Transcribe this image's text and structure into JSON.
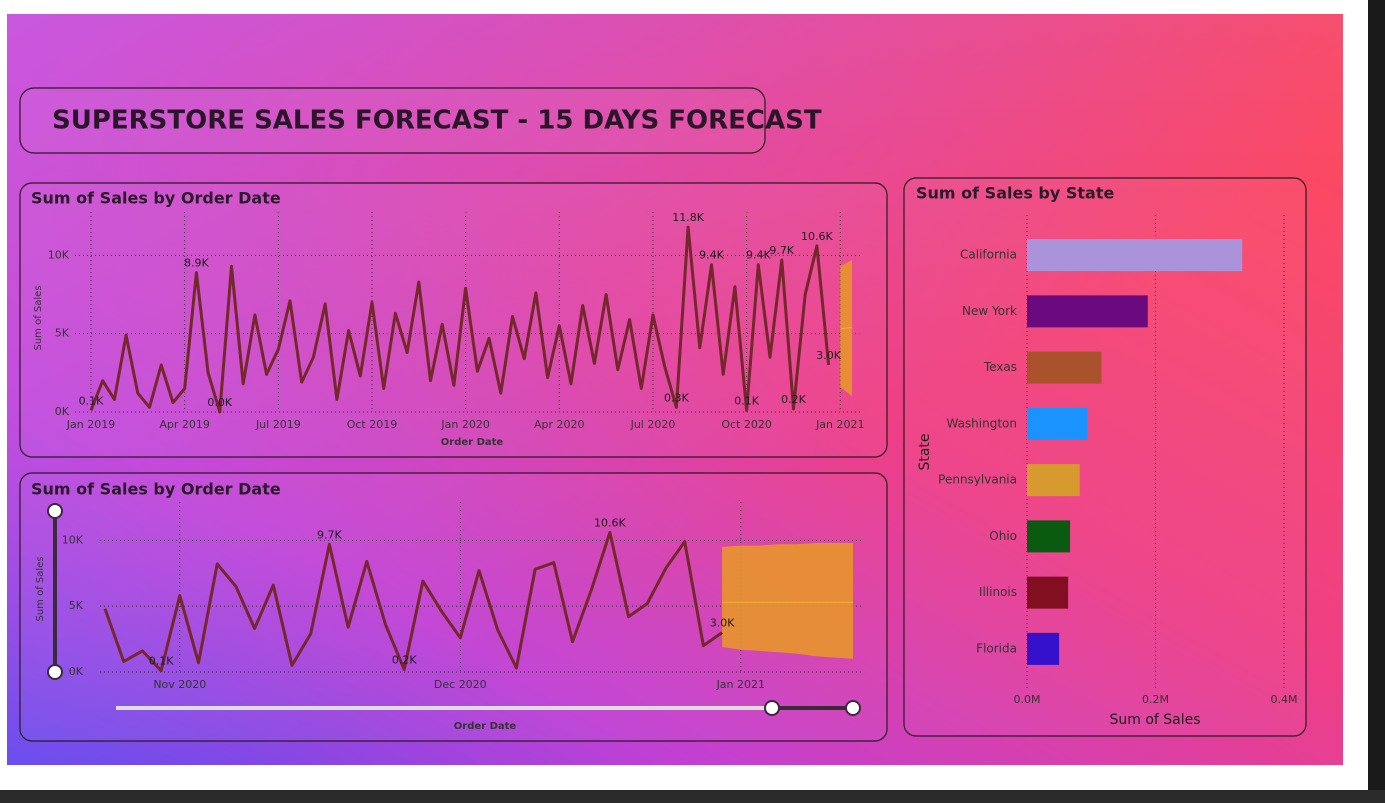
{
  "header": {
    "title": "SUPERSTORE SALES FORECAST - 15 DAYS FORECAST"
  },
  "chart_data": [
    {
      "type": "line",
      "title": "Sum of Sales by Order Date",
      "x_label": "Order Date",
      "y_label": "Sum of Sales",
      "categories": [
        "Jan 2019",
        null,
        null,
        null,
        null,
        null,
        null,
        null,
        "Apr 2019",
        null,
        null,
        null,
        null,
        null,
        null,
        null,
        "Jul 2019",
        null,
        null,
        null,
        null,
        null,
        null,
        null,
        "Oct 2019",
        null,
        null,
        null,
        null,
        null,
        null,
        null,
        "Jan 2020",
        null,
        null,
        null,
        null,
        null,
        null,
        null,
        "Apr 2020",
        null,
        null,
        null,
        null,
        null,
        null,
        null,
        "Jul 2020",
        null,
        null,
        null,
        null,
        null,
        null,
        null,
        "Oct 2020",
        null,
        null,
        null,
        null,
        null,
        null,
        null,
        "Jan 2021",
        null
      ],
      "ylim": [
        0,
        12000
      ],
      "yticks": [
        {
          "value": 0,
          "label": "0K"
        },
        {
          "value": 5000,
          "label": "5K"
        },
        {
          "value": 10000,
          "label": "10K"
        }
      ],
      "grid": true,
      "series": [
        {
          "color": "#74282c",
          "values": [
            100,
            2000,
            800,
            4900,
            1200,
            300,
            3000,
            600,
            1500,
            8900,
            2500,
            0,
            9300,
            1800,
            6200,
            2400,
            4000,
            7100,
            1900,
            3500,
            6900,
            800,
            5200,
            2300,
            7000,
            1500,
            6300,
            3800,
            8300,
            2000,
            5600,
            1700,
            7900,
            2600,
            4700,
            1200,
            6100,
            3400,
            7600,
            2200,
            5500,
            1800,
            6800,
            3100,
            7500,
            2700,
            5900,
            1500,
            6200,
            2900,
            300,
            11800,
            4100,
            9400,
            2400,
            8000,
            100,
            9400,
            3500,
            9700,
            200,
            7500,
            10600,
            3000,
            null,
            null
          ],
          "value_labels": [
            "0.1K",
            null,
            null,
            null,
            null,
            null,
            null,
            null,
            null,
            "8.9K",
            null,
            "0.0K",
            null,
            null,
            null,
            null,
            null,
            null,
            null,
            null,
            null,
            null,
            null,
            null,
            null,
            null,
            null,
            null,
            null,
            null,
            null,
            null,
            null,
            null,
            null,
            null,
            null,
            null,
            null,
            null,
            null,
            null,
            null,
            null,
            null,
            null,
            null,
            null,
            null,
            null,
            "0.3K",
            "11.8K",
            null,
            "9.4K",
            null,
            null,
            "0.1K",
            "9.4K",
            null,
            "9.7K",
            "0.2K",
            null,
            "10.6K",
            "3.0K",
            null,
            null
          ]
        }
      ],
      "forecast": {
        "color": "#e8952c",
        "upper": [
          null,
          null,
          null,
          null,
          null,
          null,
          null,
          null,
          null,
          null,
          null,
          null,
          null,
          null,
          null,
          null,
          null,
          null,
          null,
          null,
          null,
          null,
          null,
          null,
          null,
          null,
          null,
          null,
          null,
          null,
          null,
          null,
          null,
          null,
          null,
          null,
          null,
          null,
          null,
          null,
          null,
          null,
          null,
          null,
          null,
          null,
          null,
          null,
          null,
          null,
          null,
          null,
          null,
          null,
          null,
          null,
          null,
          null,
          null,
          null,
          null,
          null,
          null,
          null,
          9300,
          9700
        ],
        "lower": [
          null,
          null,
          null,
          null,
          null,
          null,
          null,
          null,
          null,
          null,
          null,
          null,
          null,
          null,
          null,
          null,
          null,
          null,
          null,
          null,
          null,
          null,
          null,
          null,
          null,
          null,
          null,
          null,
          null,
          null,
          null,
          null,
          null,
          null,
          null,
          null,
          null,
          null,
          null,
          null,
          null,
          null,
          null,
          null,
          null,
          null,
          null,
          null,
          null,
          null,
          null,
          null,
          null,
          null,
          null,
          null,
          null,
          null,
          null,
          null,
          null,
          null,
          null,
          null,
          1600,
          1000
        ],
        "values": [
          null,
          null,
          null,
          null,
          null,
          null,
          null,
          null,
          null,
          null,
          null,
          null,
          null,
          null,
          null,
          null,
          null,
          null,
          null,
          null,
          null,
          null,
          null,
          null,
          null,
          null,
          null,
          null,
          null,
          null,
          null,
          null,
          null,
          null,
          null,
          null,
          null,
          null,
          null,
          null,
          null,
          null,
          null,
          null,
          null,
          null,
          null,
          null,
          null,
          null,
          null,
          null,
          null,
          null,
          null,
          null,
          null,
          null,
          null,
          null,
          null,
          null,
          null,
          null,
          5300,
          5400
        ]
      }
    },
    {
      "type": "line",
      "title": "Sum of Sales by Order Date",
      "x_label": "Order Date",
      "y_label": "Sum of Sales",
      "categories": [
        null,
        null,
        null,
        null,
        "Nov 2020",
        null,
        null,
        null,
        null,
        null,
        null,
        null,
        null,
        null,
        null,
        null,
        null,
        null,
        null,
        "Dec 2020",
        null,
        null,
        null,
        null,
        null,
        null,
        null,
        null,
        null,
        null,
        null,
        null,
        null,
        null,
        "Jan 2021",
        null,
        null,
        null,
        null,
        null,
        null
      ],
      "ylim": [
        0,
        12000
      ],
      "yticks": [
        {
          "value": 0,
          "label": "0K"
        },
        {
          "value": 5000,
          "label": "5K"
        },
        {
          "value": 10000,
          "label": "10K"
        }
      ],
      "grid": true,
      "series": [
        {
          "color": "#74282c",
          "values": [
            4800,
            800,
            1600,
            100,
            5800,
            700,
            8200,
            6500,
            3300,
            6600,
            500,
            2900,
            9700,
            3400,
            8400,
            3600,
            200,
            6900,
            4600,
            2600,
            7700,
            3200,
            300,
            7800,
            8300,
            2300,
            6200,
            10600,
            4200,
            5200,
            7900,
            9900,
            2000,
            3000,
            null,
            null,
            null,
            null,
            null,
            null,
            null
          ],
          "value_labels": [
            null,
            null,
            null,
            "0.1K",
            null,
            null,
            null,
            null,
            null,
            null,
            null,
            null,
            "9.7K",
            null,
            null,
            null,
            "0.2K",
            null,
            null,
            null,
            null,
            null,
            null,
            null,
            null,
            null,
            null,
            "10.6K",
            null,
            null,
            null,
            null,
            null,
            "3.0K",
            null,
            null,
            null,
            null,
            null,
            null,
            null
          ]
        }
      ],
      "forecast": {
        "color": "#e8952c",
        "upper": [
          null,
          null,
          null,
          null,
          null,
          null,
          null,
          null,
          null,
          null,
          null,
          null,
          null,
          null,
          null,
          null,
          null,
          null,
          null,
          null,
          null,
          null,
          null,
          null,
          null,
          null,
          null,
          null,
          null,
          null,
          null,
          null,
          null,
          9500,
          9600,
          9600,
          9700,
          9700,
          9800,
          9800,
          9800
        ],
        "lower": [
          null,
          null,
          null,
          null,
          null,
          null,
          null,
          null,
          null,
          null,
          null,
          null,
          null,
          null,
          null,
          null,
          null,
          null,
          null,
          null,
          null,
          null,
          null,
          null,
          null,
          null,
          null,
          null,
          null,
          null,
          null,
          null,
          null,
          1900,
          1700,
          1600,
          1500,
          1400,
          1200,
          1100,
          1000
        ],
        "values": [
          null,
          null,
          null,
          null,
          null,
          null,
          null,
          null,
          null,
          null,
          null,
          null,
          null,
          null,
          null,
          null,
          null,
          null,
          null,
          null,
          null,
          null,
          null,
          null,
          null,
          null,
          null,
          null,
          null,
          null,
          null,
          null,
          null,
          5300,
          5300,
          5300,
          5300,
          5300,
          5300,
          5300,
          5300
        ]
      }
    },
    {
      "type": "bar",
      "orientation": "horizontal",
      "title": "Sum of Sales by State",
      "x_label": "Sum of Sales",
      "y_label": "State",
      "categories": [
        "California",
        "New York",
        "Texas",
        "Washington",
        "Pennsylvania",
        "Ohio",
        "Illinois",
        "Florida"
      ],
      "values": [
        335000,
        188000,
        116000,
        94000,
        82000,
        67000,
        64000,
        50000
      ],
      "colors": [
        "#ab93dc",
        "#6a0a7e",
        "#a9522c",
        "#1a93ff",
        "#d69a2e",
        "#0b5a12",
        "#820f1f",
        "#3611cc"
      ],
      "xlim": [
        0,
        400000
      ],
      "xticks": [
        {
          "value": 0,
          "label": "0.0M"
        },
        {
          "value": 200000,
          "label": "0.2M"
        },
        {
          "value": 400000,
          "label": "0.4M"
        }
      ],
      "grid": true
    }
  ]
}
